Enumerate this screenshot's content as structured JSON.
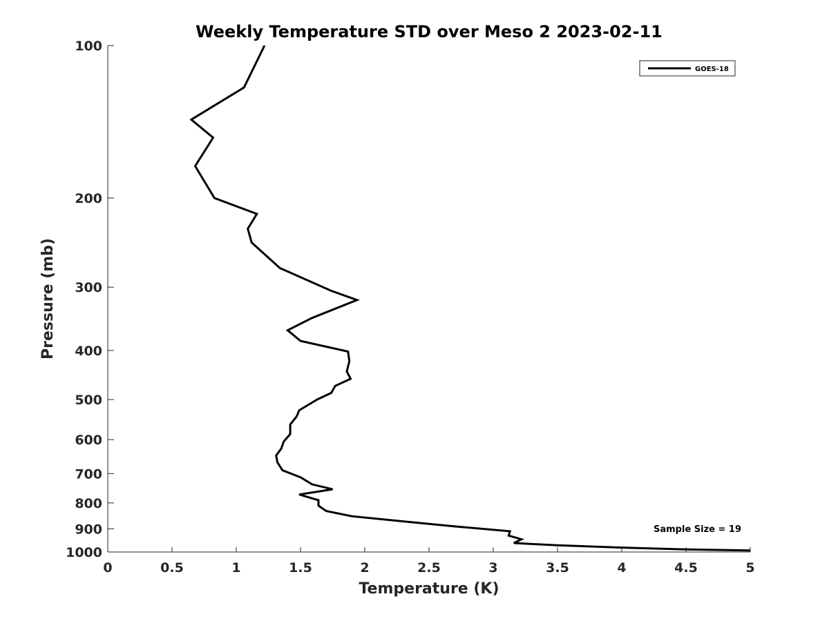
{
  "chart_data": {
    "type": "line",
    "title": "Weekly Temperature STD over Meso 2 2023-02-11",
    "xlabel": "Temperature (K)",
    "ylabel": "Pressure (mb)",
    "xlim": [
      0,
      5
    ],
    "ylim": [
      100,
      1000
    ],
    "y_scale": "log",
    "y_reversed": true,
    "grid": false,
    "legend_position": "top-right",
    "xticks": [
      "0",
      "0.5",
      "1",
      "1.5",
      "2",
      "2.5",
      "3",
      "3.5",
      "4",
      "4.5",
      "5"
    ],
    "yticks": [
      "100",
      "200",
      "300",
      "400",
      "500",
      "600",
      "700",
      "800",
      "900",
      "1000"
    ],
    "annotation": "Sample Size = 19",
    "series": [
      {
        "name": "GOES-18",
        "color": "#000000",
        "x": [
          1.22,
          1.06,
          0.65,
          0.82,
          0.68,
          0.83,
          1.16,
          1.09,
          1.12,
          1.34,
          1.74,
          1.94,
          1.59,
          1.4,
          1.5,
          1.87,
          1.88,
          1.86,
          1.89,
          1.77,
          1.74,
          1.63,
          1.49,
          1.47,
          1.42,
          1.42,
          1.37,
          1.35,
          1.31,
          1.32,
          1.36,
          1.5,
          1.59,
          1.75,
          1.49,
          1.64,
          1.64,
          1.7,
          1.9,
          2.3,
          2.7,
          3.13,
          3.12,
          3.22,
          3.16,
          3.5,
          4.0,
          4.5,
          5.0
        ],
        "y": [
          100,
          121,
          140,
          152,
          173,
          200,
          215,
          230,
          245,
          275,
          305,
          318,
          345,
          365,
          383,
          402,
          420,
          440,
          455,
          470,
          485,
          500,
          525,
          540,
          560,
          585,
          605,
          625,
          645,
          665,
          690,
          712,
          735,
          752,
          770,
          790,
          810,
          830,
          850,
          870,
          890,
          910,
          928,
          944,
          960,
          970,
          980,
          988,
          993
        ]
      }
    ]
  }
}
